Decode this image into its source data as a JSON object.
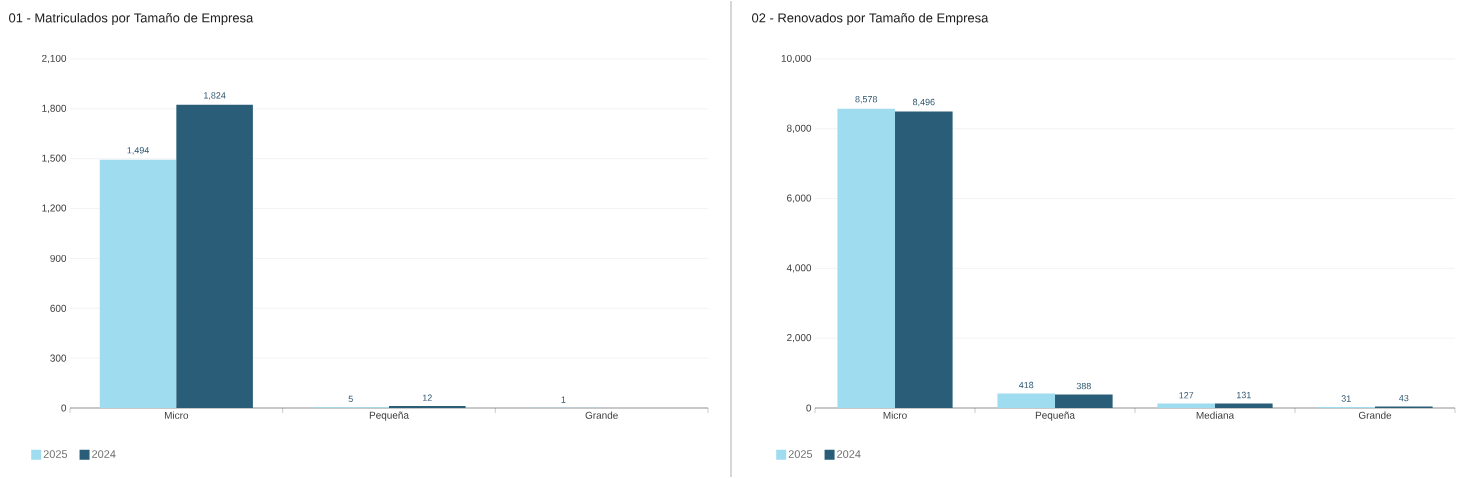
{
  "chart_data": [
    {
      "type": "bar",
      "title": "01 - Matriculados por Tamaño de Empresa",
      "categories": [
        "Micro",
        "Pequeña",
        "Grande"
      ],
      "series": [
        {
          "name": "2025",
          "color": "#a0dcf0",
          "values": [
            1494,
            5,
            1
          ],
          "value_labels": [
            "1,494",
            "5",
            "1"
          ]
        },
        {
          "name": "2024",
          "color": "#2a5e78",
          "values": [
            1824,
            12,
            null
          ],
          "value_labels": [
            "1,824",
            "12",
            null
          ]
        }
      ],
      "ylim": [
        0,
        2100
      ],
      "yticks": [
        0,
        300,
        600,
        900,
        {
          "value": 1200,
          "label": "1,200"
        },
        {
          "value": 1500,
          "label": "1,500"
        },
        {
          "value": 1800,
          "label": "1,800"
        },
        {
          "value": 2100,
          "label": "2,100"
        }
      ],
      "grid": "y",
      "legend": "bottom left"
    },
    {
      "type": "bar",
      "title": "02 - Renovados por Tamaño de Empresa",
      "categories": [
        "Micro",
        "Pequeña",
        "Mediana",
        "Grande"
      ],
      "series": [
        {
          "name": "2025",
          "color": "#a0dcf0",
          "values": [
            8578,
            418,
            127,
            31
          ],
          "value_labels": [
            "8,578",
            "418",
            "127",
            "31"
          ]
        },
        {
          "name": "2024",
          "color": "#2a5e78",
          "values": [
            8496,
            388,
            131,
            43
          ],
          "value_labels": [
            "8,496",
            "388",
            "131",
            "43"
          ]
        }
      ],
      "ylim": [
        0,
        10000
      ],
      "yticks": [
        0,
        {
          "value": 2000,
          "label": "2,000"
        },
        {
          "value": 4000,
          "label": "4,000"
        },
        {
          "value": 6000,
          "label": "6,000"
        },
        {
          "value": 8000,
          "label": "8,000"
        },
        {
          "value": 10000,
          "label": "10,000"
        }
      ],
      "grid": "y",
      "legend": "bottom left"
    }
  ]
}
